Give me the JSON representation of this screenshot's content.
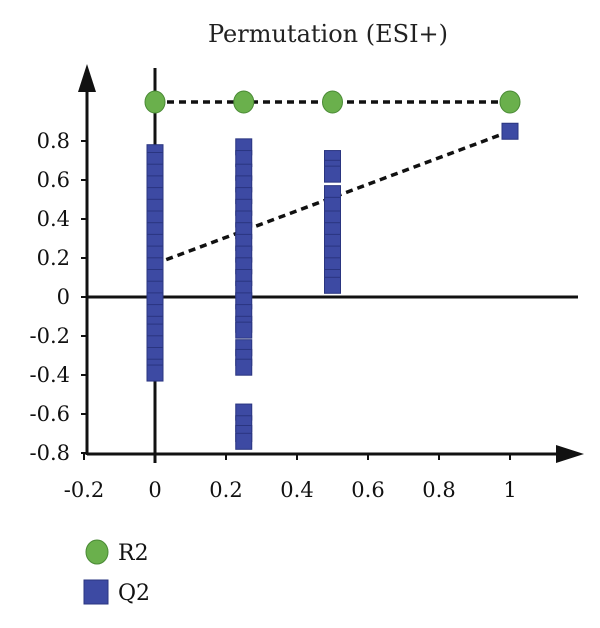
{
  "chart_data": {
    "type": "scatter",
    "title": "Permutation (ESI+)",
    "xlabel": "",
    "ylabel": "",
    "xlim": [
      -0.2,
      1.15
    ],
    "ylim": [
      -0.8,
      1.05
    ],
    "x_ticks": [
      "-0.2",
      "0",
      "0.2",
      "0.4",
      "0.6",
      "0.8",
      "1"
    ],
    "x_tick_values": [
      -0.2,
      0,
      0.2,
      0.4,
      0.6,
      0.8,
      1
    ],
    "y_ticks": [
      "0.8",
      "0.6",
      "0.4",
      "0.2",
      "0",
      "-0.2",
      "-0.4",
      "-0.6",
      "-0.8"
    ],
    "y_tick_values": [
      0.8,
      0.6,
      0.4,
      0.2,
      0,
      -0.2,
      -0.4,
      -0.6,
      -0.8
    ],
    "grid": false,
    "legend": "bottom-left",
    "series": [
      {
        "name": "R2",
        "marker": "circle",
        "color": "#6ab04c",
        "points": [
          [
            0,
            1.0
          ],
          [
            0.25,
            1.0
          ],
          [
            0.5,
            1.0
          ],
          [
            1.0,
            1.0
          ]
        ],
        "regression": [
          [
            0,
            1.0
          ],
          [
            1.0,
            1.0
          ]
        ]
      },
      {
        "name": "Q2",
        "marker": "square",
        "color": "#3d4aa3",
        "points": [
          [
            0,
            0.74
          ],
          [
            0,
            0.7
          ],
          [
            0,
            0.64
          ],
          [
            0,
            0.58
          ],
          [
            0,
            0.52
          ],
          [
            0,
            0.46
          ],
          [
            0,
            0.4
          ],
          [
            0,
            0.34
          ],
          [
            0,
            0.28
          ],
          [
            0,
            0.22
          ],
          [
            0,
            0.16
          ],
          [
            0,
            0.1
          ],
          [
            0,
            0.04
          ],
          [
            0,
            -0.02
          ],
          [
            0,
            -0.08
          ],
          [
            0,
            -0.14
          ],
          [
            0,
            -0.18
          ],
          [
            0,
            -0.24
          ],
          [
            0,
            -0.3
          ],
          [
            0,
            -0.36
          ],
          [
            0,
            -0.39
          ],
          [
            0.25,
            0.77
          ],
          [
            0.25,
            0.71
          ],
          [
            0.25,
            0.64
          ],
          [
            0.25,
            0.58
          ],
          [
            0.25,
            0.52
          ],
          [
            0.25,
            0.46
          ],
          [
            0.25,
            0.4
          ],
          [
            0.25,
            0.34
          ],
          [
            0.25,
            0.28
          ],
          [
            0.25,
            0.22
          ],
          [
            0.25,
            0.16
          ],
          [
            0.25,
            0.1
          ],
          [
            0.25,
            0.04
          ],
          [
            0.25,
            -0.02
          ],
          [
            0.25,
            -0.08
          ],
          [
            0.25,
            -0.14
          ],
          [
            0.25,
            -0.17
          ],
          [
            0.25,
            -0.26
          ],
          [
            0.25,
            -0.31
          ],
          [
            0.25,
            -0.36
          ],
          [
            0.25,
            -0.59
          ],
          [
            0.25,
            -0.65
          ],
          [
            0.25,
            -0.7
          ],
          [
            0.25,
            -0.74
          ],
          [
            0.5,
            0.71
          ],
          [
            0.5,
            0.66
          ],
          [
            0.5,
            0.63
          ],
          [
            0.5,
            0.53
          ],
          [
            0.5,
            0.47
          ],
          [
            0.5,
            0.4
          ],
          [
            0.5,
            0.34
          ],
          [
            0.5,
            0.28
          ],
          [
            0.5,
            0.22
          ],
          [
            0.5,
            0.16
          ],
          [
            0.5,
            0.1
          ],
          [
            0.5,
            0.06
          ],
          [
            1.0,
            0.85
          ]
        ],
        "regression": [
          [
            0,
            0.17
          ],
          [
            1.0,
            0.85
          ]
        ]
      }
    ]
  }
}
